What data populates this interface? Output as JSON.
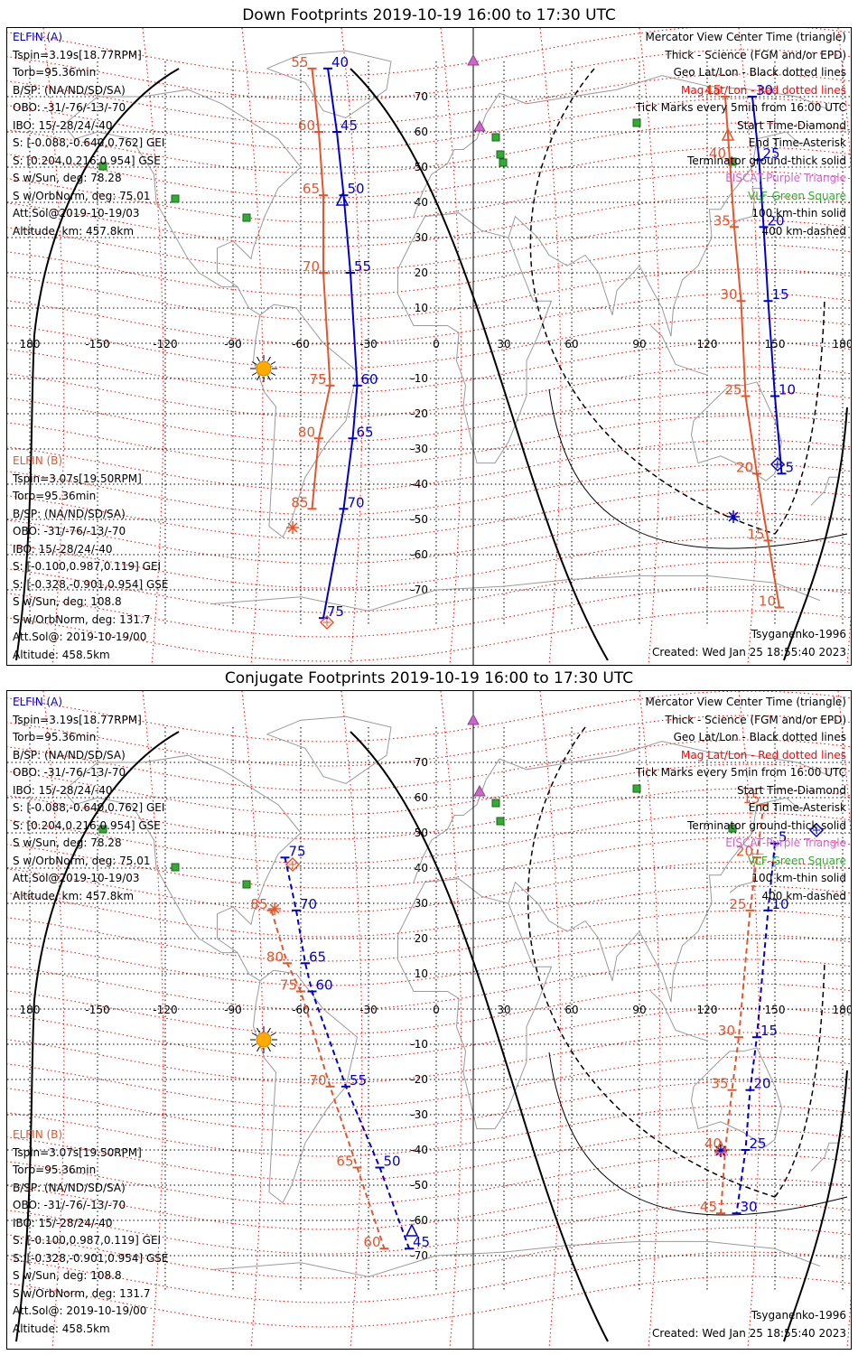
{
  "panels": [
    {
      "title": "Down Footprints 2019-10-19 16:00 to 17:30 UTC",
      "elfin_a": {
        "label": "ELFIN (A)",
        "lines": [
          "Tspin=3.19s[18.77RPM]",
          "Torb=95.36min",
          "B/SP: (NA/ND/SD/SA)",
          "OBO: -31/-76/-13/-70",
          "IBO: 15/-28/24/-40",
          "S: [-0.088,-0.640,0.762] GEI",
          "S: [0.204,0.216,0.954] GSE",
          "S w/Sun, deg: 78.28",
          "S w/OrbNorm, deg: 75.01",
          "Att.Sol@2019-10-19/03",
          "Altitude, km: 457.8km"
        ]
      },
      "elfin_b": {
        "label": "ELFIN (B)",
        "lines": [
          "Tspin=3.07s[19.50RPM]",
          "Torb=95.36min",
          "B/SP: (NA/ND/SD/SA)",
          "OBO: -31/-76/-13/-70",
          "IBO: 15/-28/24/-40",
          "S: [-0.100,0.987,0.119] GEI",
          "S: [-0.328,-0.901,0.954] GSE",
          "S w/Sun, deg: 108.8",
          "S w/OrbNorm, deg: 131.7",
          "Att.Sol@: 2019-10-19/00",
          "Altitude: 458.5km"
        ]
      },
      "legend": [
        "Mercator View Center Time (triangle)",
        "Thick - Science (FGM and/or EPD)",
        "Geo Lat/Lon - Black dotted lines",
        "Mag Lat/Lon - Red dotted lines",
        "Tick Marks every 5min from 16:00 UTC",
        "Start Time-Diamond",
        "End Time-Asterisk",
        "Terminator ground-thick solid",
        "EISCAT-Purple Triangle",
        "VLF-Green Square",
        "100 km-thin solid",
        "400 km-dashed"
      ],
      "model": "Tsyganenko-1996",
      "created": "Created: Wed Jan 25 18:55:40 2023"
    },
    {
      "title": "Conjugate Footprints 2019-10-19 16:00 to 17:30 UTC",
      "elfin_a": {
        "label": "ELFIN (A)",
        "lines": [
          "Tspin=3.19s[18.77RPM]",
          "Torb=95.36min",
          "B/SP: (NA/ND/SD/SA)",
          "OBO: -31/-76/-13/-70",
          "IBO: 15/-28/24/-40",
          "S: [-0.088,-0.640,0.762] GEI",
          "S: [0.204,0.216,0.954] GSE",
          "S w/Sun, deg: 78.28",
          "S w/OrbNorm, deg: 75.01",
          "Att.Sol@2019-10-19/03",
          "Altitude, km: 457.8km"
        ]
      },
      "elfin_b": {
        "label": "ELFIN (B)",
        "lines": [
          "Tspin=3.07s[19.50RPM]",
          "Torb=95.36min",
          "B/SP: (NA/ND/SD/SA)",
          "OBO: -31/-76/-13/-70",
          "IBO: 15/-28/24/-40",
          "S: [-0.100,0.987,0.119] GEI",
          "S: [-0.328,-0.901,0.954] GSE",
          "S w/Sun, deg: 108.8",
          "S w/OrbNorm, deg: 131.7",
          "Att.Sol@: 2019-10-19/00",
          "Altitude: 458.5km"
        ]
      },
      "legend": [
        "Mercator View Center Time (triangle)",
        "Thick - Science (FGM and/or EPD)",
        "Geo Lat/Lon - Black dotted lines",
        "Mag Lat/Lon - Red dotted lines",
        "Tick Marks every 5min from 16:00 UTC",
        "Start Time-Diamond",
        "End Time-Asterisk",
        "Terminator ground-thick solid",
        "EISCAT-Purple Triangle",
        "VLF-Green Square",
        "100 km-thin solid",
        "400 km-dashed"
      ],
      "model": "Tsyganenko-1996",
      "created": "Created: Wed Jan 25 18:55:40 2023"
    }
  ],
  "lon_ticks": [
    "180",
    "-150",
    "-120",
    "-90",
    "-60",
    "-30",
    "0",
    "30",
    "60",
    "90",
    "120",
    "150",
    "180"
  ],
  "lat_ticks": [
    "70",
    "60",
    "50",
    "40",
    "30",
    "20",
    "10",
    "-10",
    "-20",
    "-30",
    "-40",
    "-50",
    "-60",
    "-70"
  ],
  "colors": {
    "elfin_a": "#0000cc",
    "elfin_b": "#e8542a",
    "mag_grid": "#ff0000",
    "eiscat": "#cc66cc",
    "vlf": "#33aa33",
    "sun": "#ffaa00"
  },
  "map_data": {
    "down": {
      "elfin_a_track": {
        "labels": [
          "40",
          "45",
          "50",
          "55",
          "60",
          "65",
          "70",
          "75"
        ],
        "points": [
          [
            -48,
            78
          ],
          [
            -44,
            60
          ],
          [
            -41,
            42
          ],
          [
            -38,
            20
          ],
          [
            -35,
            -12
          ],
          [
            -37,
            -27
          ],
          [
            -41,
            -47
          ],
          [
            -50,
            -78
          ]
        ]
      },
      "elfin_b_track": {
        "labels": [
          "55",
          "60",
          "65",
          "70",
          "75",
          "80",
          "85"
        ],
        "points": [
          [
            -55,
            78
          ],
          [
            -52,
            60
          ],
          [
            -50,
            42
          ],
          [
            -50,
            20
          ],
          [
            -47,
            -12
          ],
          [
            -52,
            -27
          ],
          [
            -55,
            -47
          ]
        ]
      },
      "elfin_a_track_east": {
        "labels": [
          "30",
          "25",
          "20",
          "15",
          "10",
          "5"
        ],
        "points": [
          [
            140,
            70
          ],
          [
            143,
            52
          ],
          [
            145,
            33
          ],
          [
            147,
            12
          ],
          [
            150,
            -15
          ],
          [
            153,
            -37
          ]
        ]
      },
      "elfin_b_track_east": {
        "labels": [
          "45",
          "40",
          "35",
          "30",
          "25",
          "20",
          "15",
          "10"
        ],
        "points": [
          [
            128,
            70
          ],
          [
            130,
            52
          ],
          [
            132,
            33
          ],
          [
            135,
            12
          ],
          [
            137,
            -15
          ],
          [
            142,
            -37
          ],
          [
            147,
            -56
          ],
          [
            152,
            -75
          ]
        ]
      }
    },
    "conjugate": {
      "elfin_a_track": {
        "labels": [
          "75",
          "70",
          "65",
          "60",
          "55",
          "50",
          "45"
        ],
        "points": [
          [
            -67,
            43
          ],
          [
            -62,
            28
          ],
          [
            -58,
            13
          ],
          [
            -55,
            5
          ],
          [
            -40,
            -22
          ],
          [
            -25,
            -45
          ],
          [
            -12,
            -68
          ]
        ]
      },
      "elfin_b_track": {
        "labels": [
          "85",
          "80",
          "75",
          "70",
          "65",
          "60"
        ],
        "points": [
          [
            -73,
            28
          ],
          [
            -66,
            13
          ],
          [
            -60,
            5
          ],
          [
            -47,
            -22
          ],
          [
            -35,
            -45
          ],
          [
            -23,
            -68
          ]
        ]
      },
      "elfin_a_track_east": {
        "labels": [
          "5",
          "10",
          "15",
          "20",
          "25",
          "30"
        ],
        "points": [
          [
            150,
            47
          ],
          [
            147,
            28
          ],
          [
            142,
            -8
          ],
          [
            139,
            -23
          ],
          [
            137,
            -40
          ],
          [
            133,
            -58
          ]
        ]
      },
      "elfin_b_track_east": {
        "labels": [
          "15",
          "20",
          "25",
          "30",
          "35",
          "40",
          "45"
        ],
        "points": [
          [
            145,
            58
          ],
          [
            142,
            43
          ],
          [
            139,
            28
          ],
          [
            134,
            -8
          ],
          [
            131,
            -23
          ],
          [
            128,
            -40
          ],
          [
            126,
            -58
          ]
        ]
      }
    }
  }
}
